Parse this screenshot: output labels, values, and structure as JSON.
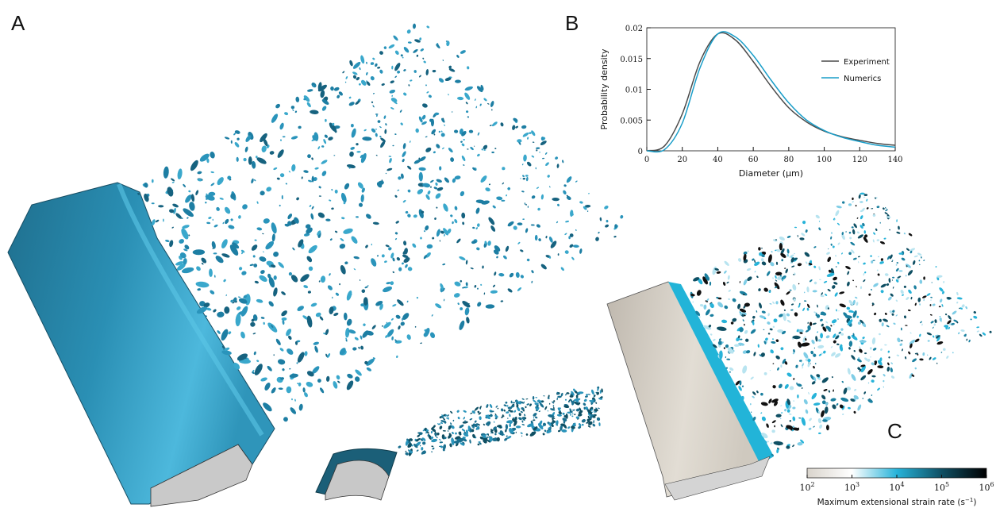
{
  "panels": {
    "a": "A",
    "b": "B",
    "c": "C"
  },
  "chart_data": {
    "type": "line",
    "xlabel": "Diameter (μm)",
    "ylabel": "Probability density",
    "x": [
      0,
      10,
      20,
      30,
      40,
      50,
      60,
      70,
      80,
      90,
      100,
      110,
      120,
      130,
      140
    ],
    "series": [
      {
        "name": "Experiment",
        "color": "#4a4a4a",
        "values": [
          0,
          0.0008,
          0.006,
          0.0145,
          0.019,
          0.018,
          0.0145,
          0.0105,
          0.007,
          0.0047,
          0.0032,
          0.0023,
          0.0017,
          0.0012,
          0.0009
        ]
      },
      {
        "name": "Numerics",
        "color": "#1a9ec9",
        "values": [
          0,
          0.0002,
          0.0045,
          0.0135,
          0.019,
          0.0185,
          0.0155,
          0.0115,
          0.0078,
          0.005,
          0.0033,
          0.0022,
          0.0015,
          0.0009,
          0.0006
        ]
      }
    ],
    "xlim": [
      0,
      140
    ],
    "xticks": [
      0,
      20,
      40,
      60,
      80,
      100,
      120,
      140
    ],
    "ylim": [
      0,
      0.02
    ],
    "yticks": [
      0,
      0.005,
      0.01,
      0.015,
      0.02
    ],
    "legend": "upper right"
  },
  "colorbar": {
    "label": "Maximum extensional strain rate (s",
    "label_exponent": "−1",
    "label_end": ")",
    "colors": [
      "#d9d4cc",
      "#ffffff",
      "#27b3d9",
      "#0f4f63",
      "#000000"
    ],
    "ticks": [
      {
        "base": "10",
        "exponent": "2"
      },
      {
        "base": "10",
        "exponent": "3"
      },
      {
        "base": "10",
        "exponent": "4"
      },
      {
        "base": "10",
        "exponent": "5"
      },
      {
        "base": "10",
        "exponent": "6"
      }
    ]
  }
}
